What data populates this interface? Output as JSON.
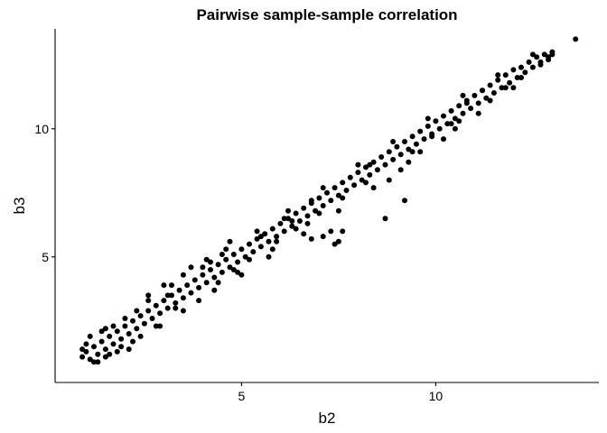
{
  "chart_data": {
    "type": "scatter",
    "title": "Pairwise sample-sample correlation",
    "xlabel": "b2",
    "ylabel": "b3",
    "xlim": [
      0.2,
      14.2
    ],
    "ylim": [
      0.1,
      13.9
    ],
    "xticks": [
      5,
      10
    ],
    "yticks": [
      5,
      10
    ],
    "grid": false,
    "legend": "none",
    "point_color": "#000000",
    "series": [
      {
        "points": [
          [
            0.9,
            1.1
          ],
          [
            1.0,
            1.3
          ],
          [
            1.1,
            1.0
          ],
          [
            1.2,
            1.5
          ],
          [
            1.3,
            1.2
          ],
          [
            1.4,
            1.7
          ],
          [
            1.5,
            1.4
          ],
          [
            1.6,
            1.9
          ],
          [
            1.7,
            1.6
          ],
          [
            1.8,
            2.1
          ],
          [
            1.9,
            1.8
          ],
          [
            2.0,
            2.3
          ],
          [
            2.1,
            2.0
          ],
          [
            2.2,
            2.5
          ],
          [
            2.3,
            2.2
          ],
          [
            2.4,
            2.7
          ],
          [
            2.5,
            2.4
          ],
          [
            2.6,
            2.9
          ],
          [
            2.7,
            2.6
          ],
          [
            2.8,
            3.1
          ],
          [
            2.9,
            2.8
          ],
          [
            3.0,
            3.3
          ],
          [
            3.1,
            3.0
          ],
          [
            3.2,
            3.5
          ],
          [
            3.3,
            3.2
          ],
          [
            3.4,
            3.7
          ],
          [
            3.5,
            3.4
          ],
          [
            3.6,
            3.9
          ],
          [
            3.7,
            3.6
          ],
          [
            3.8,
            4.1
          ],
          [
            3.9,
            3.8
          ],
          [
            4.0,
            4.3
          ],
          [
            4.1,
            4.0
          ],
          [
            4.2,
            4.5
          ],
          [
            4.3,
            4.2
          ],
          [
            4.4,
            4.7
          ],
          [
            4.5,
            4.4
          ],
          [
            4.6,
            4.9
          ],
          [
            4.7,
            4.6
          ],
          [
            4.8,
            5.1
          ],
          [
            4.9,
            4.8
          ],
          [
            5.0,
            5.3
          ],
          [
            5.1,
            5.0
          ],
          [
            5.2,
            5.5
          ],
          [
            5.3,
            5.2
          ],
          [
            5.4,
            5.7
          ],
          [
            5.5,
            5.4
          ],
          [
            5.6,
            5.9
          ],
          [
            5.7,
            5.6
          ],
          [
            5.8,
            6.1
          ],
          [
            5.9,
            5.8
          ],
          [
            6.0,
            6.3
          ],
          [
            6.1,
            6.0
          ],
          [
            6.2,
            6.5
          ],
          [
            6.3,
            6.2
          ],
          [
            6.4,
            6.7
          ],
          [
            6.5,
            6.4
          ],
          [
            6.6,
            6.9
          ],
          [
            6.7,
            6.6
          ],
          [
            6.8,
            7.1
          ],
          [
            6.9,
            6.8
          ],
          [
            7.0,
            7.3
          ],
          [
            7.1,
            7.0
          ],
          [
            7.2,
            7.5
          ],
          [
            7.3,
            7.2
          ],
          [
            7.4,
            7.7
          ],
          [
            7.5,
            7.4
          ],
          [
            7.6,
            7.9
          ],
          [
            7.7,
            7.6
          ],
          [
            7.8,
            8.1
          ],
          [
            7.9,
            7.8
          ],
          [
            8.0,
            8.3
          ],
          [
            8.1,
            8.0
          ],
          [
            8.2,
            8.5
          ],
          [
            8.3,
            8.2
          ],
          [
            8.4,
            8.7
          ],
          [
            8.5,
            8.4
          ],
          [
            8.6,
            8.9
          ],
          [
            8.7,
            8.6
          ],
          [
            8.8,
            9.1
          ],
          [
            8.9,
            8.8
          ],
          [
            9.0,
            9.3
          ],
          [
            9.1,
            9.0
          ],
          [
            9.2,
            9.5
          ],
          [
            9.3,
            9.2
          ],
          [
            9.4,
            9.7
          ],
          [
            9.5,
            9.4
          ],
          [
            9.6,
            9.9
          ],
          [
            9.7,
            9.6
          ],
          [
            9.8,
            10.1
          ],
          [
            9.9,
            9.8
          ],
          [
            10.0,
            10.3
          ],
          [
            10.1,
            10.0
          ],
          [
            10.2,
            10.5
          ],
          [
            10.3,
            10.2
          ],
          [
            10.4,
            10.7
          ],
          [
            10.5,
            10.4
          ],
          [
            10.6,
            10.9
          ],
          [
            10.7,
            10.6
          ],
          [
            10.8,
            11.1
          ],
          [
            10.9,
            10.8
          ],
          [
            11.0,
            11.3
          ],
          [
            11.1,
            11.0
          ],
          [
            11.2,
            11.5
          ],
          [
            11.3,
            11.2
          ],
          [
            11.4,
            11.7
          ],
          [
            11.5,
            11.4
          ],
          [
            11.6,
            11.9
          ],
          [
            11.7,
            11.6
          ],
          [
            11.8,
            12.1
          ],
          [
            11.9,
            11.8
          ],
          [
            12.0,
            12.3
          ],
          [
            12.1,
            12.0
          ],
          [
            12.2,
            12.4
          ],
          [
            12.3,
            12.2
          ],
          [
            12.4,
            12.6
          ],
          [
            12.5,
            12.4
          ],
          [
            12.6,
            12.8
          ],
          [
            12.7,
            12.6
          ],
          [
            12.8,
            12.9
          ],
          [
            12.9,
            12.8
          ],
          [
            13.0,
            13.0
          ],
          [
            1.0,
            1.6
          ],
          [
            1.2,
            0.9
          ],
          [
            1.5,
            2.2
          ],
          [
            1.8,
            1.3
          ],
          [
            2.0,
            2.6
          ],
          [
            2.2,
            1.7
          ],
          [
            2.6,
            3.3
          ],
          [
            2.9,
            2.3
          ],
          [
            3.2,
            3.9
          ],
          [
            3.5,
            2.9
          ],
          [
            4.0,
            4.6
          ],
          [
            4.3,
            3.7
          ],
          [
            4.6,
            5.3
          ],
          [
            4.9,
            4.4
          ],
          [
            5.4,
            6.0
          ],
          [
            5.7,
            5.0
          ],
          [
            6.2,
            6.8
          ],
          [
            6.6,
            5.9
          ],
          [
            7.1,
            7.7
          ],
          [
            7.5,
            6.8
          ],
          [
            8.0,
            8.6
          ],
          [
            8.4,
            7.7
          ],
          [
            8.9,
            9.5
          ],
          [
            9.3,
            8.7
          ],
          [
            9.8,
            10.4
          ],
          [
            10.2,
            9.6
          ],
          [
            10.7,
            11.3
          ],
          [
            11.1,
            10.6
          ],
          [
            11.6,
            12.1
          ],
          [
            12.0,
            11.6
          ],
          [
            12.5,
            12.9
          ],
          [
            3.0,
            3.9
          ],
          [
            2.6,
            3.5
          ],
          [
            4.1,
            4.9
          ],
          [
            4.5,
            5.1
          ],
          [
            3.7,
            4.6
          ],
          [
            6.1,
            6.5
          ],
          [
            6.8,
            7.2
          ],
          [
            5.0,
            4.3
          ],
          [
            7.6,
            7.3
          ],
          [
            8.3,
            8.6
          ],
          [
            10.8,
            11.0
          ],
          [
            11.2,
            11.5
          ],
          [
            9.6,
            9.1
          ],
          [
            3.5,
            4.3
          ],
          [
            4.7,
            5.6
          ],
          [
            2.3,
            2.9
          ],
          [
            13.6,
            13.5
          ],
          [
            9.2,
            7.2
          ],
          [
            8.7,
            6.5
          ],
          [
            7.3,
            6.0
          ],
          [
            7.6,
            6.0
          ],
          [
            7.4,
            5.5
          ],
          [
            7.5,
            5.6
          ],
          [
            6.8,
            5.7
          ],
          [
            7.1,
            5.8
          ],
          [
            4.8,
            4.5
          ],
          [
            1.5,
            1.1
          ],
          [
            1.6,
            1.2
          ],
          [
            2.8,
            2.3
          ],
          [
            3.1,
            3.5
          ],
          [
            8.8,
            8.0
          ],
          [
            9.1,
            8.4
          ],
          [
            10.4,
            10.2
          ],
          [
            5.9,
            5.6
          ],
          [
            6.3,
            6.4
          ],
          [
            5.5,
            5.8
          ],
          [
            3.3,
            3.0
          ],
          [
            9.9,
            9.7
          ],
          [
            10.5,
            10.0
          ],
          [
            12.2,
            12.0
          ],
          [
            2.1,
            1.4
          ],
          [
            1.4,
            2.1
          ],
          [
            1.1,
            1.9
          ],
          [
            0.9,
            1.4
          ],
          [
            1.3,
            0.9
          ],
          [
            1.7,
            2.3
          ],
          [
            2.4,
            1.9
          ],
          [
            1.9,
            1.5
          ],
          [
            3.9,
            3.3
          ],
          [
            4.4,
            4.0
          ],
          [
            5.2,
            4.9
          ],
          [
            6.4,
            6.1
          ],
          [
            7.0,
            6.7
          ],
          [
            8.2,
            7.9
          ],
          [
            9.4,
            9.1
          ],
          [
            10.6,
            10.3
          ],
          [
            11.4,
            11.1
          ],
          [
            12.7,
            12.5
          ],
          [
            12.9,
            12.7
          ],
          [
            13.0,
            12.9
          ],
          [
            11.8,
            11.6
          ],
          [
            5.8,
            5.3
          ],
          [
            6.7,
            6.3
          ],
          [
            4.2,
            4.8
          ]
        ]
      }
    ]
  }
}
